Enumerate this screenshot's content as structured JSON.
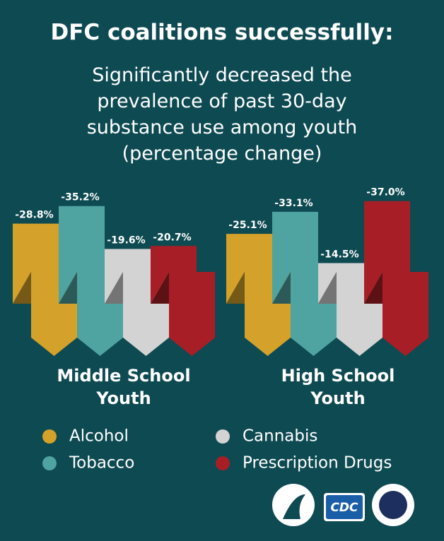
{
  "chart_data": {
    "type": "ribbon-bar",
    "title": "DFC coalitions successfully:",
    "subtitle": "Significantly decreased the prevalence of past 30-day substance use among youth (percentage change)",
    "categories": [
      "Middle School Youth",
      "High School Youth"
    ],
    "series": [
      {
        "name": "Alcohol",
        "color": "#d4a12a",
        "values": [
          -28.8,
          -25.1
        ],
        "value_labels": [
          "-28.8%",
          "-25.1%"
        ]
      },
      {
        "name": "Tobacco",
        "color": "#4fa3a0",
        "values": [
          -35.2,
          -33.1
        ],
        "value_labels": [
          "-35.2%",
          "-33.1%"
        ]
      },
      {
        "name": "Cannabis",
        "color": "#d3d3d3",
        "values": [
          -19.6,
          -14.5
        ],
        "value_labels": [
          "-19.6%",
          "-14.5%"
        ]
      },
      {
        "name": "Prescription Drugs",
        "color": "#a81e26",
        "values": [
          -20.7,
          -37.0
        ],
        "value_labels": [
          "-20.7%",
          "-37.0%"
        ]
      }
    ],
    "ylim": [
      0,
      -40
    ],
    "logo_text": "CDC"
  }
}
